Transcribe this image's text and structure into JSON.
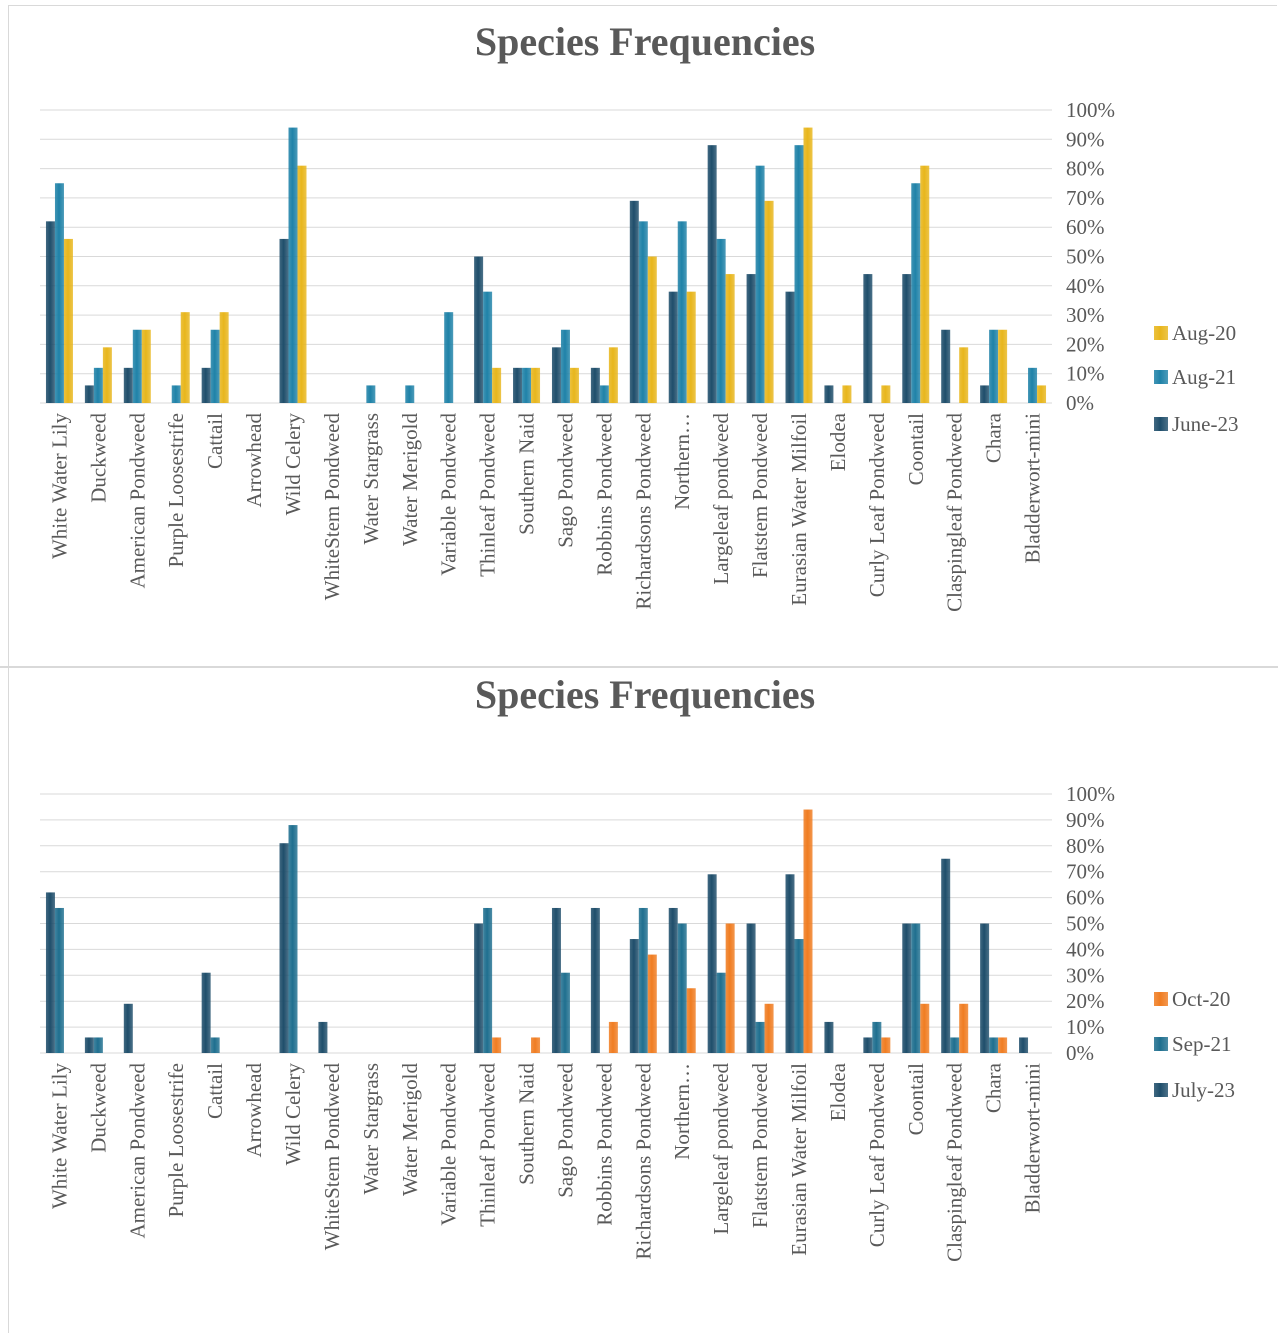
{
  "categories": [
    "White Water Lily",
    "Duckweed",
    "American Pondweed",
    "Purple Loosestrife",
    "Cattail",
    "Arrowhead",
    "Wild Celery",
    "WhiteStem Pondweed",
    "Water Stargrass",
    "Water Merigold",
    "Variable Pondweed",
    "Thinleaf Pondweed",
    "Southern Naid",
    "Sago Pondweed",
    "Robbins Pondweed",
    "Richardsons Pondweed",
    "Northern…",
    "Largeleaf pondweed",
    "Flatstem Pondweed",
    "Eurasian Water Milfoil",
    "Elodea",
    "Curly Leaf Pondweed",
    "Coontail",
    "Claspingleaf Pondweed",
    "Chara",
    "Bladderwort-mini"
  ],
  "chart_data": [
    {
      "type": "bar",
      "title": "Species Frequencies",
      "ylim": [
        0,
        100
      ],
      "y_unit": "%",
      "y_ticks": [
        "0%",
        "10%",
        "20%",
        "30%",
        "40%",
        "50%",
        "60%",
        "70%",
        "80%",
        "90%",
        "100%"
      ],
      "grid": true,
      "legend_position": "right",
      "series": [
        {
          "name": "June-23",
          "color": "#1f4e6b",
          "values": [
            62,
            6,
            12,
            0,
            12,
            0,
            56,
            0,
            0,
            0,
            0,
            50,
            12,
            19,
            12,
            69,
            38,
            88,
            44,
            38,
            6,
            44,
            44,
            25,
            6,
            0
          ]
        },
        {
          "name": "Aug-21",
          "color": "#1f82a8",
          "values": [
            75,
            12,
            25,
            6,
            25,
            0,
            94,
            0,
            6,
            6,
            31,
            38,
            12,
            25,
            6,
            62,
            62,
            56,
            81,
            88,
            0,
            0,
            75,
            0,
            25,
            12
          ]
        },
        {
          "name": "Aug-20",
          "color": "#e8b61c",
          "values": [
            56,
            19,
            25,
            31,
            31,
            0,
            81,
            0,
            0,
            0,
            0,
            12,
            12,
            12,
            19,
            50,
            38,
            44,
            69,
            94,
            6,
            6,
            81,
            19,
            25,
            6
          ]
        }
      ]
    },
    {
      "type": "bar",
      "title": "Species Frequencies",
      "ylim": [
        0,
        100
      ],
      "y_unit": "%",
      "y_ticks": [
        "0%",
        "10%",
        "20%",
        "30%",
        "40%",
        "50%",
        "60%",
        "70%",
        "80%",
        "90%",
        "100%"
      ],
      "grid": true,
      "legend_position": "right",
      "series": [
        {
          "name": "July-23",
          "color": "#1f4e6b",
          "values": [
            62,
            6,
            19,
            0,
            31,
            0,
            81,
            12,
            0,
            0,
            0,
            50,
            0,
            56,
            56,
            44,
            56,
            69,
            50,
            69,
            12,
            6,
            50,
            75,
            50,
            6
          ]
        },
        {
          "name": "Sep-21",
          "color": "#1f6f8f",
          "values": [
            56,
            6,
            0,
            0,
            6,
            0,
            88,
            0,
            0,
            0,
            0,
            56,
            0,
            31,
            0,
            56,
            50,
            31,
            12,
            44,
            0,
            12,
            50,
            6,
            6,
            0
          ]
        },
        {
          "name": "Oct-20",
          "color": "#f07d22",
          "values": [
            0,
            0,
            0,
            0,
            0,
            0,
            0,
            0,
            0,
            0,
            0,
            6,
            6,
            0,
            12,
            38,
            25,
            50,
            19,
            94,
            0,
            6,
            19,
            19,
            6,
            0
          ]
        }
      ]
    }
  ]
}
